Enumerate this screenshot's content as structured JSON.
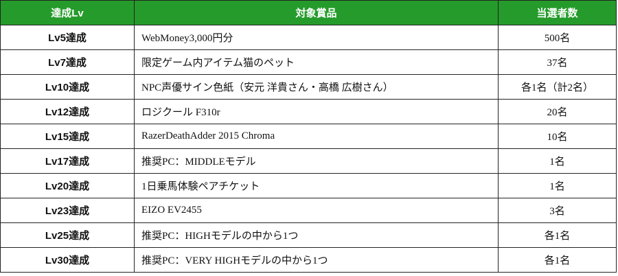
{
  "colors": {
    "header_bg": "#259b2b",
    "header_text": "#ffffff",
    "border": "#222222"
  },
  "headers": {
    "level": "達成Lv",
    "prize": "対象賞品",
    "winners": "当選者数"
  },
  "rows": [
    {
      "level": "Lv5達成",
      "prize": "WebMoney3,000円分",
      "winners": "500名"
    },
    {
      "level": "Lv7達成",
      "prize": "限定ゲーム内アイテム猫のペット",
      "winners": "37名"
    },
    {
      "level": "Lv10達成",
      "prize": "NPC声優サイン色紙（安元 洋貴さん・高橋 広樹さん）",
      "winners": "各1名（計2名）"
    },
    {
      "level": "Lv12達成",
      "prize": "ロジクール F310r",
      "winners": "20名"
    },
    {
      "level": "Lv15達成",
      "prize": "RazerDeathAdder 2015 Chroma",
      "winners": "10名"
    },
    {
      "level": "Lv17達成",
      "prize": "推奨PC：MIDDLEモデル",
      "winners": "1名"
    },
    {
      "level": "Lv20達成",
      "prize": "1日乗馬体験ペアチケット",
      "winners": "1名"
    },
    {
      "level": "Lv23達成",
      "prize": "EIZO EV2455",
      "winners": "3名"
    },
    {
      "level": "Lv25達成",
      "prize": "推奨PC：HIGHモデルの中から1つ",
      "winners": "各1名"
    },
    {
      "level": "Lv30達成",
      "prize": "推奨PC：VERY HIGHモデルの中から1つ",
      "winners": "各1名"
    }
  ]
}
